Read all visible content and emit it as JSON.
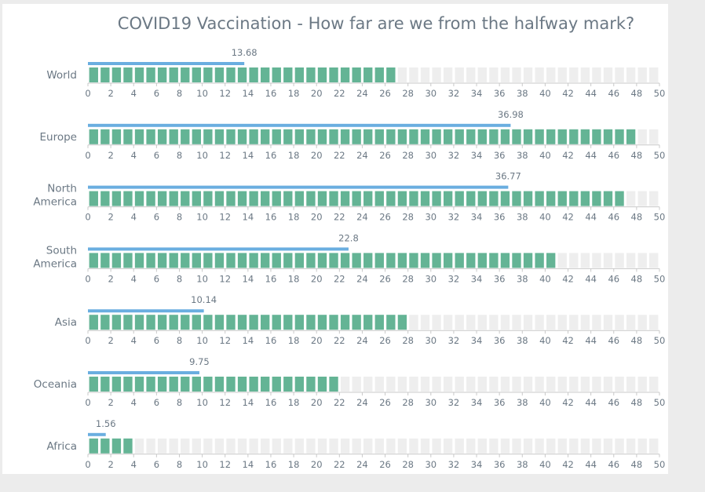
{
  "chart_data": {
    "type": "bar",
    "title": "COVID19 Vaccination - How far are we from the halfway mark?",
    "categories": [
      "World",
      "Europe",
      "North America",
      "South America",
      "Asia",
      "Oceania",
      "Africa"
    ],
    "series": [
      {
        "values": [
          13.68,
          36.98,
          36.77,
          22.8,
          10.14,
          9.75,
          1.56
        ]
      },
      {
        "values": [
          27,
          48,
          47,
          41,
          28,
          22,
          4
        ]
      }
    ],
    "xlim": [
      0,
      50
    ],
    "xticks": [
      0,
      2,
      4,
      6,
      8,
      10,
      12,
      14,
      16,
      18,
      20,
      22,
      24,
      26,
      28,
      30,
      32,
      34,
      36,
      38,
      40,
      42,
      44,
      46,
      48,
      50
    ],
    "colors": {
      "value_line": "#6aaee0",
      "filled_cell": "#64b495",
      "empty_cell": "#eeeeee",
      "axis": "#c9c9c9",
      "text": "#6b7884"
    }
  }
}
